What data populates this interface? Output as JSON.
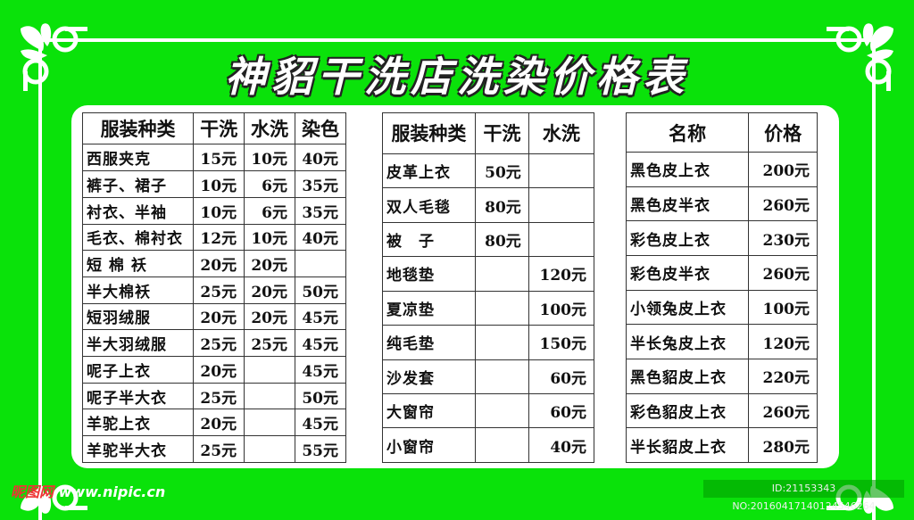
{
  "title": "神貂干洗店洗染价格表",
  "colors": {
    "background": "#0ae20a",
    "panel": "#ffffff",
    "text": "#111111"
  },
  "table1": {
    "headers": [
      "服装种类",
      "干洗",
      "水洗",
      "染色"
    ],
    "rows": [
      [
        "西服夹克",
        "15元",
        "10元",
        "40元"
      ],
      [
        "裤子、裙子",
        "10元",
        "6元",
        "35元"
      ],
      [
        "衬衣、半袖",
        "10元",
        "6元",
        "35元"
      ],
      [
        "毛衣、棉衬衣",
        "12元",
        "10元",
        "40元"
      ],
      [
        "短 棉 袄",
        "20元",
        "20元",
        ""
      ],
      [
        "半大棉袄",
        "25元",
        "20元",
        "50元"
      ],
      [
        "短羽绒服",
        "20元",
        "20元",
        "45元"
      ],
      [
        "半大羽绒服",
        "25元",
        "25元",
        "45元"
      ],
      [
        "呢子上衣",
        "20元",
        "",
        "45元"
      ],
      [
        "呢子半大衣",
        "25元",
        "",
        "50元"
      ],
      [
        "羊驼上衣",
        "20元",
        "",
        "45元"
      ],
      [
        "羊驼半大衣",
        "25元",
        "",
        "55元"
      ]
    ]
  },
  "table2": {
    "headers": [
      "服装种类",
      "干洗",
      "水洗"
    ],
    "rows": [
      [
        "皮革上衣",
        "50元",
        ""
      ],
      [
        "双人毛毯",
        "80元",
        ""
      ],
      [
        "被　子",
        "80元",
        ""
      ],
      [
        "地毯垫",
        "",
        "120元"
      ],
      [
        "夏凉垫",
        "",
        "100元"
      ],
      [
        "纯毛垫",
        "",
        "150元"
      ],
      [
        "沙发套",
        "",
        "60元"
      ],
      [
        "大窗帘",
        "",
        "60元"
      ],
      [
        "小窗帘",
        "",
        "40元"
      ]
    ]
  },
  "table3": {
    "headers": [
      "名称",
      "价格"
    ],
    "rows": [
      [
        "黑色皮上衣",
        "200元"
      ],
      [
        "黑色皮半衣",
        "260元"
      ],
      [
        "彩色皮上衣",
        "230元"
      ],
      [
        "彩色皮半衣",
        "260元"
      ],
      [
        "小领兔皮上衣",
        "100元"
      ],
      [
        "半长兔皮上衣",
        "120元"
      ],
      [
        "黑色貂皮上衣",
        "220元"
      ],
      [
        "彩色貂皮上衣",
        "260元"
      ],
      [
        "半长貂皮上衣",
        "280元"
      ]
    ]
  },
  "watermark": {
    "brand": "昵图网",
    "site": "www.nipic.cn",
    "id": "ID:21153343 NO:20160417140124546264"
  }
}
